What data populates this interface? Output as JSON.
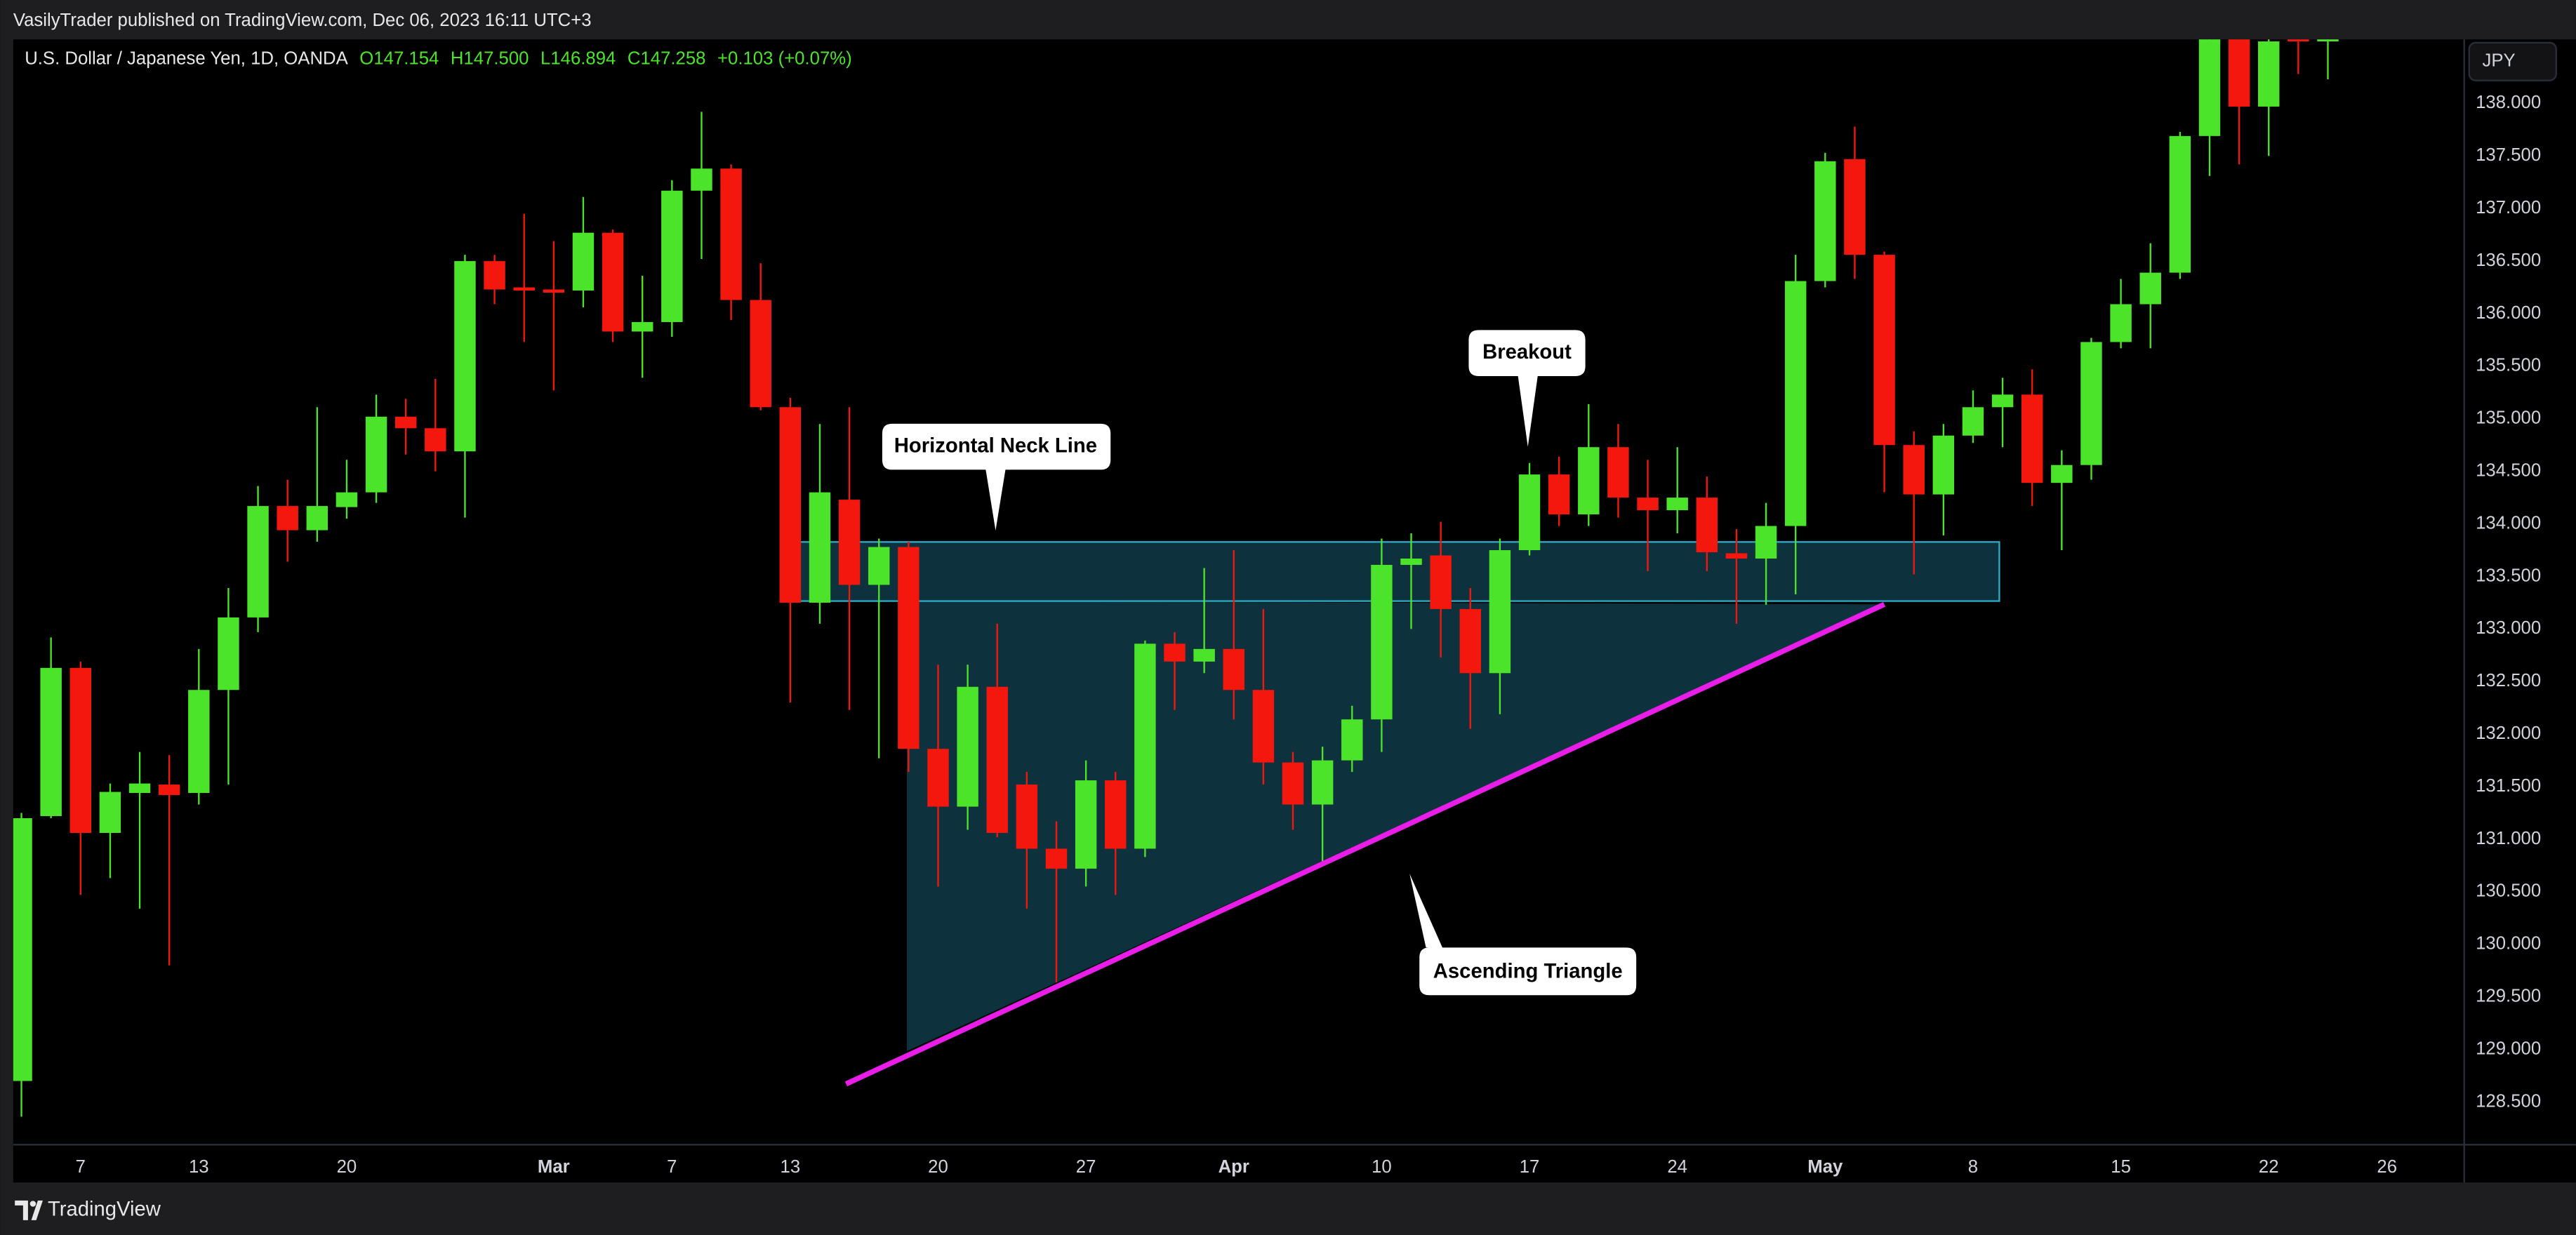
{
  "header": {
    "publisher": "VasilyTrader published on TradingView.com, Dec 06, 2023 16:11 UTC+3"
  },
  "legend": {
    "symbol": "U.S. Dollar / Japanese Yen, 1D, OANDA",
    "open": "O147.154",
    "high": "H147.500",
    "low": "L146.894",
    "close": "C147.258",
    "change": "+0.103 (+0.07%)"
  },
  "currency": "JPY",
  "footer": {
    "brand": "TradingView"
  },
  "annotations": {
    "neck_line": "Horizontal Neck Line",
    "breakout": "Breakout",
    "triangle": "Ascending Triangle"
  },
  "chart_data": {
    "type": "candlestick",
    "up_color": "#4ce42a",
    "down_color": "#f4170e",
    "grid": false,
    "categories": [
      null,
      null,
      "7",
      null,
      null,
      null,
      "13",
      null,
      null,
      null,
      null,
      "20",
      null,
      null,
      null,
      null,
      null,
      null,
      "Mar",
      null,
      null,
      null,
      "7",
      null,
      null,
      null,
      "13",
      null,
      null,
      null,
      null,
      "20",
      null,
      null,
      null,
      null,
      "27",
      null,
      null,
      null,
      null,
      "Apr",
      null,
      null,
      null,
      null,
      "10",
      null,
      null,
      null,
      null,
      "17",
      null,
      null,
      null,
      null,
      "24",
      null,
      null,
      null,
      null,
      "May",
      null,
      null,
      null,
      null,
      "8",
      null,
      null,
      null,
      null,
      "15",
      null,
      null,
      null,
      null,
      "22",
      null,
      null,
      null,
      "26"
    ],
    "open": [
      128.7,
      131.22,
      132.63,
      131.06,
      131.44,
      131.52,
      131.44,
      132.42,
      133.11,
      134.17,
      133.94,
      134.16,
      134.3,
      135.02,
      134.91,
      134.69,
      136.5,
      136.25,
      136.23,
      136.22,
      136.77,
      135.83,
      135.92,
      137.17,
      137.38,
      136.13,
      135.11,
      133.25,
      134.23,
      133.42,
      133.78,
      131.86,
      131.31,
      132.45,
      131.52,
      130.91,
      130.72,
      131.56,
      130.91,
      132.86,
      132.69,
      132.81,
      132.42,
      131.73,
      131.33,
      131.75,
      132.14,
      133.61,
      133.7,
      133.19,
      132.58,
      133.75,
      134.47,
      134.09,
      134.73,
      134.25,
      134.13,
      134.25,
      133.72,
      133.67,
      133.98,
      136.31,
      137.47,
      136.56,
      134.75,
      134.28,
      134.84,
      135.11,
      135.23,
      134.39,
      134.56,
      135.73,
      136.09,
      136.39,
      137.69,
      138.67,
      137.97,
      138.62,
      138.59,
      null,
      null
    ],
    "high": [
      131.25,
      132.92,
      132.69,
      131.53,
      131.83,
      131.8,
      132.81,
      133.39,
      134.36,
      134.42,
      135.11,
      134.61,
      135.23,
      135.19,
      135.38,
      136.56,
      136.56,
      136.95,
      136.69,
      137.11,
      136.8,
      136.36,
      137.27,
      137.92,
      137.42,
      136.48,
      135.2,
      134.95,
      135.11,
      133.86,
      133.83,
      132.66,
      132.66,
      133.05,
      131.64,
      131.17,
      131.75,
      131.64,
      132.89,
      132.97,
      133.58,
      133.75,
      133.19,
      131.83,
      131.88,
      132.27,
      133.86,
      133.91,
      134.02,
      133.39,
      133.86,
      134.58,
      134.64,
      135.14,
      134.95,
      134.61,
      134.73,
      134.45,
      133.95,
      134.2,
      136.56,
      137.53,
      137.78,
      136.59,
      134.88,
      134.95,
      135.27,
      135.39,
      135.47,
      134.7,
      135.77,
      136.33,
      136.67,
      137.73,
      138.7,
      138.7,
      138.7,
      138.8,
      138.83,
      null,
      null
    ],
    "low": [
      128.36,
      131.2,
      130.47,
      130.63,
      130.34,
      129.8,
      131.33,
      131.52,
      132.97,
      133.64,
      133.83,
      134.05,
      134.2,
      134.66,
      134.5,
      134.06,
      136.09,
      135.73,
      135.27,
      136.06,
      135.73,
      135.39,
      135.78,
      136.52,
      135.94,
      135.08,
      132.3,
      133.05,
      132.23,
      131.77,
      131.64,
      130.55,
      131.09,
      131.02,
      130.34,
      129.64,
      130.55,
      130.47,
      130.83,
      132.23,
      132.58,
      132.14,
      131.52,
      131.09,
      130.78,
      131.64,
      131.83,
      133.0,
      132.73,
      132.05,
      132.19,
      133.7,
      133.98,
      133.98,
      134.06,
      133.55,
      133.91,
      133.55,
      133.05,
      133.23,
      133.33,
      136.25,
      136.33,
      134.3,
      133.52,
      133.89,
      134.77,
      134.73,
      134.17,
      133.75,
      134.42,
      135.67,
      135.67,
      136.33,
      137.31,
      137.42,
      137.5,
      138.28,
      138.23,
      null,
      null
    ],
    "close": [
      131.2,
      132.63,
      131.06,
      131.45,
      131.53,
      131.42,
      132.42,
      133.11,
      134.17,
      133.94,
      134.17,
      134.3,
      135.02,
      134.91,
      134.69,
      136.5,
      136.23,
      136.22,
      136.2,
      136.77,
      135.83,
      135.92,
      137.17,
      137.38,
      136.13,
      135.11,
      133.25,
      134.3,
      133.42,
      133.78,
      131.86,
      131.31,
      132.45,
      131.06,
      130.91,
      130.72,
      131.56,
      130.91,
      132.86,
      132.69,
      132.81,
      132.42,
      131.73,
      131.33,
      131.75,
      132.14,
      133.61,
      133.67,
      133.19,
      132.58,
      133.75,
      134.47,
      134.09,
      134.73,
      134.25,
      134.13,
      134.25,
      133.73,
      133.67,
      133.98,
      136.31,
      137.45,
      136.56,
      134.75,
      134.28,
      134.84,
      135.11,
      135.23,
      134.39,
      134.56,
      135.73,
      136.09,
      136.39,
      137.69,
      138.67,
      137.97,
      138.59,
      138.59,
      138.64,
      null,
      null
    ],
    "ylim": [
      128.094,
      138.609
    ],
    "yticks": [
      {
        "value": 128.5,
        "label": "128.500"
      },
      {
        "value": 129,
        "label": "129.000"
      },
      {
        "value": 129.5,
        "label": "129.500"
      },
      {
        "value": 130,
        "label": "130.000"
      },
      {
        "value": 130.5,
        "label": "130.500"
      },
      {
        "value": 131,
        "label": "131.000"
      },
      {
        "value": 131.5,
        "label": "131.500"
      },
      {
        "value": 132,
        "label": "132.000"
      },
      {
        "value": 132.5,
        "label": "132.500"
      },
      {
        "value": 133,
        "label": "133.000"
      },
      {
        "value": 133.5,
        "label": "133.500"
      },
      {
        "value": 134,
        "label": "134.000"
      },
      {
        "value": 134.5,
        "label": "134.500"
      },
      {
        "value": 135,
        "label": "135.000"
      },
      {
        "value": 135.5,
        "label": "135.500"
      },
      {
        "value": 136,
        "label": "136.000"
      },
      {
        "value": 136.5,
        "label": "136.500"
      },
      {
        "value": 137,
        "label": "137.000"
      },
      {
        "value": 137.5,
        "label": "137.500"
      },
      {
        "value": 138,
        "label": "138.000"
      }
    ]
  }
}
